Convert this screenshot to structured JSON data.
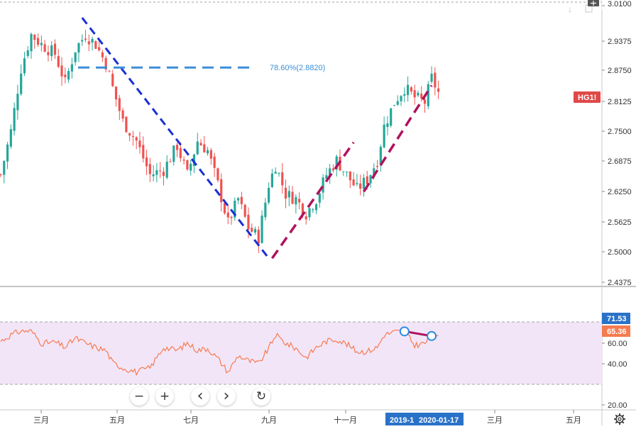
{
  "symbol_badge": "HG1!",
  "fib_label": "78.60%(2.8820)",
  "price_axis": {
    "top_label": "3.0100",
    "ticks": [
      "2.9375",
      "2.8750",
      "2.8125",
      "2.7500",
      "2.6875",
      "2.6250",
      "2.5625",
      "2.5000",
      "2.4375"
    ]
  },
  "rsi_axis": {
    "ticks": [
      "60.00",
      "40.00",
      "20.00"
    ],
    "badge_high": "71.53",
    "badge_current": "65.36"
  },
  "time_axis": {
    "labels": [
      "三月",
      "五月",
      "七月",
      "九月",
      "十一月",
      "三月",
      "五月"
    ],
    "highlight_left": "2019-1",
    "highlight_right": "2020-01-17"
  },
  "nav": {
    "zoom_out": "−",
    "zoom_in": "+",
    "scroll_left": "‹",
    "scroll_right": "›",
    "reset": "↻"
  },
  "colors": {
    "up": "#26a69a",
    "down": "#ef5350",
    "rsi_line": "#f57c4f",
    "rsi_band": "#f3e5f8",
    "trend_blue": "#1a2fd6",
    "trend_red": "#b0125e",
    "fib": "#3c8fd6",
    "badge_red": "#e04848",
    "badge_blue": "#2a72c8"
  },
  "chart_data": {
    "type": "candlestick",
    "symbol": "HG1!",
    "price_ylim": [
      2.4375,
      3.01
    ],
    "rsi_ylim": [
      20,
      80
    ],
    "rsi_band": [
      30,
      70
    ],
    "x_months": [
      "三月",
      "五月",
      "七月",
      "九月",
      "十一月",
      "2020-01-17",
      "三月",
      "五月"
    ],
    "price_path": [
      [
        0,
        2.66
      ],
      [
        3,
        2.75
      ],
      [
        6,
        2.88
      ],
      [
        9,
        2.95
      ],
      [
        12,
        2.93
      ],
      [
        16,
        2.91
      ],
      [
        19,
        2.85
      ],
      [
        22,
        2.92
      ],
      [
        25,
        2.95
      ],
      [
        28,
        2.93
      ],
      [
        31,
        2.89
      ],
      [
        33,
        2.84
      ],
      [
        36,
        2.77
      ],
      [
        40,
        2.73
      ],
      [
        44,
        2.66
      ],
      [
        48,
        2.67
      ],
      [
        52,
        2.72
      ],
      [
        55,
        2.66
      ],
      [
        58,
        2.73
      ],
      [
        61,
        2.71
      ],
      [
        64,
        2.64
      ],
      [
        67,
        2.56
      ],
      [
        70,
        2.61
      ],
      [
        73,
        2.55
      ],
      [
        76,
        2.53
      ],
      [
        79,
        2.64
      ],
      [
        81,
        2.68
      ],
      [
        84,
        2.62
      ],
      [
        87,
        2.61
      ],
      [
        90,
        2.58
      ],
      [
        93,
        2.61
      ],
      [
        96,
        2.66
      ],
      [
        99,
        2.69
      ],
      [
        102,
        2.66
      ],
      [
        105,
        2.63
      ],
      [
        108,
        2.65
      ],
      [
        111,
        2.69
      ],
      [
        113,
        2.76
      ],
      [
        116,
        2.81
      ],
      [
        119,
        2.84
      ],
      [
        122,
        2.82
      ],
      [
        125,
        2.81
      ],
      [
        127,
        2.86
      ],
      [
        129,
        2.83
      ]
    ],
    "rsi_path": [
      [
        0,
        62
      ],
      [
        3,
        68
      ],
      [
        6,
        72
      ],
      [
        9,
        72
      ],
      [
        12,
        60
      ],
      [
        16,
        61
      ],
      [
        19,
        56
      ],
      [
        22,
        65
      ],
      [
        25,
        60
      ],
      [
        28,
        56
      ],
      [
        31,
        53
      ],
      [
        33,
        41
      ],
      [
        36,
        36
      ],
      [
        40,
        32
      ],
      [
        44,
        36
      ],
      [
        48,
        56
      ],
      [
        52,
        53
      ],
      [
        55,
        60
      ],
      [
        58,
        53
      ],
      [
        61,
        55
      ],
      [
        64,
        45
      ],
      [
        67,
        32
      ],
      [
        70,
        48
      ],
      [
        73,
        43
      ],
      [
        76,
        40
      ],
      [
        79,
        55
      ],
      [
        81,
        68
      ],
      [
        84,
        60
      ],
      [
        87,
        55
      ],
      [
        90,
        46
      ],
      [
        93,
        56
      ],
      [
        96,
        62
      ],
      [
        99,
        64
      ],
      [
        102,
        59
      ],
      [
        105,
        52
      ],
      [
        108,
        52
      ],
      [
        111,
        56
      ],
      [
        113,
        68
      ],
      [
        116,
        71
      ],
      [
        119,
        71.5
      ],
      [
        122,
        58
      ],
      [
        125,
        60
      ],
      [
        127,
        67
      ],
      [
        129,
        65.4
      ]
    ],
    "trendlines": [
      {
        "color": "blue",
        "from": [
          24,
          2.985
        ],
        "to": [
          79,
          2.487
        ]
      },
      {
        "color": "red",
        "from": [
          80,
          2.487
        ],
        "to": [
          104,
          2.727
        ]
      },
      {
        "color": "red",
        "from": [
          107,
          2.625
        ],
        "to": [
          127,
          2.845
        ]
      }
    ],
    "fib_level": {
      "label": "78.60%(2.8820)",
      "value": 2.882
    },
    "rsi_divergence": {
      "from": [
        119,
        71.5
      ],
      "to": [
        127,
        67
      ]
    }
  }
}
